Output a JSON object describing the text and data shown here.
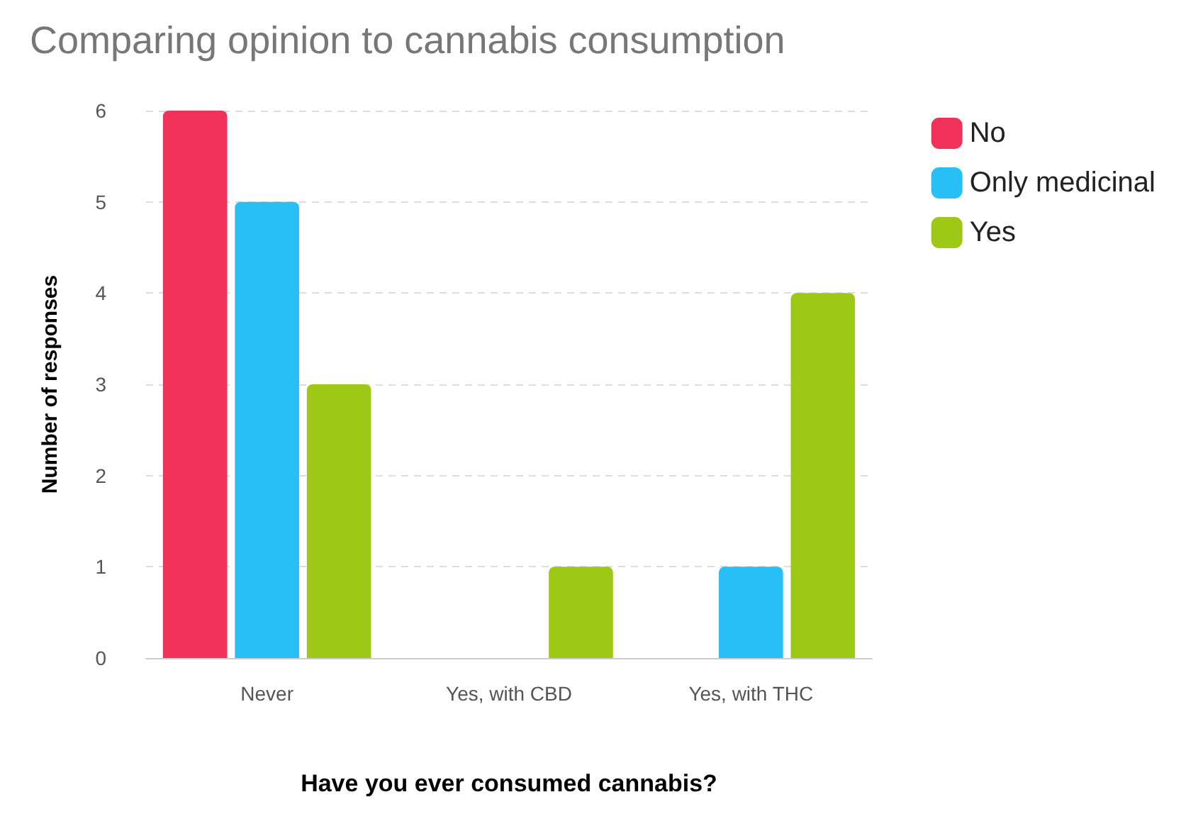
{
  "chart_data": {
    "type": "bar",
    "title": "Comparing opinion to cannabis consumption",
    "xlabel": "Have you ever consumed cannabis?",
    "ylabel": "Number of responses",
    "categories": [
      "Never",
      "Yes, with CBD",
      "Yes, with THC"
    ],
    "series": [
      {
        "name": "No",
        "color": "#f0325a",
        "values": [
          6,
          0,
          0
        ]
      },
      {
        "name": "Only medicinal",
        "color": "#27bff5",
        "values": [
          5,
          0,
          1
        ]
      },
      {
        "name": "Yes",
        "color": "#9dc816",
        "values": [
          3,
          1,
          4
        ]
      }
    ],
    "ylim": [
      0,
      6
    ],
    "yticks": [
      0,
      1,
      2,
      3,
      4,
      5,
      6
    ],
    "grid": "y",
    "legend": "top right"
  }
}
